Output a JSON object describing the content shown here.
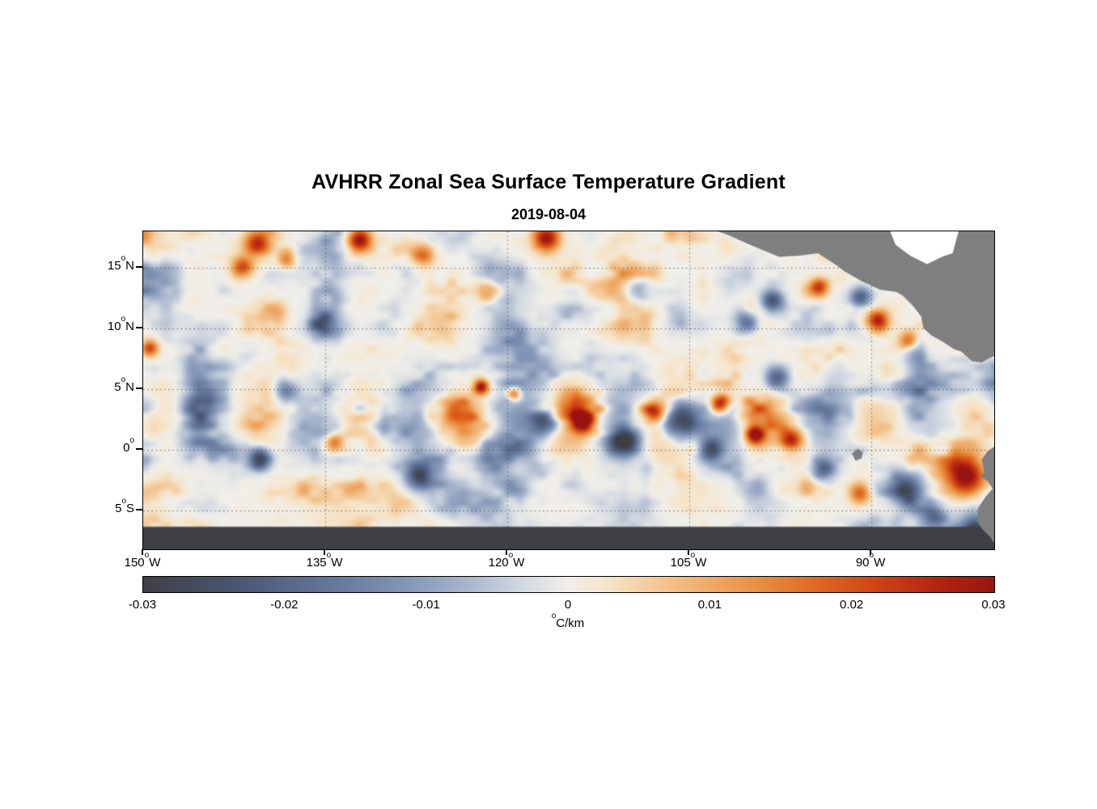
{
  "header": {
    "title": "AVHRR Zonal Sea Surface Temperature Gradient",
    "date": "2019-08-04"
  },
  "chart_data": {
    "type": "heatmap",
    "title": "AVHRR Zonal Sea Surface Temperature Gradient",
    "date": "2019-08-04",
    "deg": "o",
    "value_units": "degC/km",
    "x_range": [
      -150,
      -79.87
    ],
    "y_range": [
      18,
      -8.2
    ],
    "x_axis": {
      "ticks": [
        {
          "lon": -150,
          "num": "150",
          "hem": "W"
        },
        {
          "lon": -135,
          "num": "135",
          "hem": "W"
        },
        {
          "lon": -120,
          "num": "120",
          "hem": "W"
        },
        {
          "lon": -105,
          "num": "105",
          "hem": "W"
        },
        {
          "lon": -90,
          "num": "90",
          "hem": "W"
        }
      ]
    },
    "y_axis": {
      "ticks": [
        {
          "lat": 15,
          "num": "15",
          "hem": "N"
        },
        {
          "lat": 10,
          "num": "10",
          "hem": "N"
        },
        {
          "lat": 5,
          "num": "5",
          "hem": "N"
        },
        {
          "lat": 0,
          "num": "0",
          "hem": ""
        },
        {
          "lat": -5,
          "num": "5",
          "hem": "S"
        }
      ]
    },
    "grid": {
      "lon_lines": [
        -135,
        -120,
        -105,
        -90
      ],
      "lat_lines": [
        15,
        10,
        5,
        0,
        -5
      ],
      "style": "dotted"
    },
    "colorbar": {
      "min": -0.03,
      "max": 0.03,
      "ticks": [
        {
          "v": -0.03,
          "label": "-0.03"
        },
        {
          "v": -0.02,
          "label": "-0.02"
        },
        {
          "v": -0.01,
          "label": "-0.01"
        },
        {
          "v": 0,
          "label": "0"
        },
        {
          "v": 0.01,
          "label": "0.01"
        },
        {
          "v": 0.02,
          "label": "0.02"
        },
        {
          "v": 0.03,
          "label": "0.03"
        }
      ],
      "unit_sup": "o",
      "unit_text": "C/km"
    },
    "colormap": [
      [
        0.0,
        "#3e3f45"
      ],
      [
        0.1,
        "#48546f"
      ],
      [
        0.2,
        "#5e7094"
      ],
      [
        0.3,
        "#7e92b4"
      ],
      [
        0.38,
        "#a7b5cc"
      ],
      [
        0.45,
        "#d5dbe3"
      ],
      [
        0.5,
        "#f1efe9"
      ],
      [
        0.55,
        "#f6e3c6"
      ],
      [
        0.62,
        "#f2c08a"
      ],
      [
        0.7,
        "#ec9a4e"
      ],
      [
        0.78,
        "#e06f24"
      ],
      [
        0.86,
        "#cf4415"
      ],
      [
        0.93,
        "#b52513"
      ],
      [
        1.0,
        "#991410"
      ]
    ],
    "land_color": "#7f7f7f",
    "procedural_field": {
      "seed": 20190804,
      "octaves": [
        [
          64,
          0.55
        ],
        [
          28,
          0.3
        ],
        [
          12,
          0.15
        ]
      ],
      "anisotropy": [
        0.85,
        1.15
      ],
      "sharpen_exp": 1.55,
      "base_amp": 0.0285,
      "floor": 0.5,
      "lat_band": {
        "center": 2.5,
        "sigma2": 30,
        "gain": 0.62
      },
      "north_band": {
        "center": 14,
        "sigma2": 26,
        "gain": 0.28
      },
      "east_boost": {
        "center": -86,
        "sigma2": 80,
        "gain": 0.22
      },
      "tiw_wave": {
        "amp": 0.011,
        "wavelength": 8.5,
        "phase_lon": -115,
        "lat_center": 2.3,
        "lat_sigma2": 9,
        "lon_center": -114,
        "lon_sigma2": 900
      }
    },
    "features": [
      [
        -149.5,
        8.4,
        0.022,
        0.7
      ],
      [
        -140.6,
        17.0,
        0.026,
        1.1
      ],
      [
        -138.2,
        15.8,
        0.018,
        0.8
      ],
      [
        -132.2,
        17.3,
        0.03,
        1.0
      ],
      [
        -126.9,
        16.1,
        0.016,
        0.9
      ],
      [
        -116.8,
        17.4,
        0.028,
        1.1
      ],
      [
        -121.6,
        13.1,
        0.014,
        0.9
      ],
      [
        -141.9,
        15.1,
        0.02,
        0.9
      ],
      [
        -135.4,
        10.4,
        -0.016,
        1.0
      ],
      [
        -100.3,
        10.6,
        -0.02,
        1.0
      ],
      [
        -98.2,
        12.3,
        -0.024,
        0.9
      ],
      [
        -94.3,
        13.4,
        0.02,
        0.8
      ],
      [
        -89.5,
        10.6,
        0.028,
        0.9
      ],
      [
        -90.9,
        12.5,
        -0.022,
        0.9
      ],
      [
        -87.0,
        9.0,
        0.016,
        0.8
      ],
      [
        -138.3,
        4.8,
        -0.018,
        1.0
      ],
      [
        -140.4,
        -0.8,
        -0.028,
        0.9
      ],
      [
        -134.3,
        0.6,
        0.016,
        0.8
      ],
      [
        -127.2,
        -2.2,
        -0.022,
        1.1
      ],
      [
        -122.2,
        5.2,
        0.028,
        0.6
      ],
      [
        -119.5,
        4.6,
        0.024,
        0.6
      ],
      [
        -116.9,
        2.4,
        -0.026,
        1.3
      ],
      [
        -113.8,
        2.3,
        0.03,
        0.9
      ],
      [
        -110.4,
        0.8,
        -0.028,
        1.2
      ],
      [
        -107.9,
        3.1,
        0.018,
        0.8
      ],
      [
        -105.8,
        2.2,
        -0.03,
        1.4
      ],
      [
        -102.5,
        3.8,
        0.032,
        0.8
      ],
      [
        -103.3,
        0.0,
        -0.024,
        1.0
      ],
      [
        -99.6,
        1.2,
        0.03,
        0.8
      ],
      [
        -96.6,
        0.8,
        0.024,
        0.9
      ],
      [
        -94.0,
        -1.6,
        -0.02,
        1.0
      ],
      [
        -91.0,
        -3.6,
        0.018,
        0.9
      ],
      [
        -87.2,
        -3.2,
        -0.024,
        1.3
      ],
      [
        -84.9,
        -5.6,
        -0.018,
        1.0
      ],
      [
        -82.3,
        -2.2,
        0.032,
        1.6
      ],
      [
        -81.5,
        -6.8,
        -0.03,
        1.3
      ],
      [
        -97.8,
        5.9,
        -0.022,
        1.0
      ],
      [
        -109.5,
        13.2,
        -0.014,
        1.0
      ]
    ],
    "land": {
      "central_america": [
        [
          -103.5,
          18.3
        ],
        [
          -101.8,
          17.7
        ],
        [
          -100.0,
          16.9
        ],
        [
          -97.6,
          15.9
        ],
        [
          -95.9,
          16.0
        ],
        [
          -94.4,
          16.2
        ],
        [
          -93.0,
          15.3
        ],
        [
          -92.2,
          14.7
        ],
        [
          -90.8,
          13.9
        ],
        [
          -89.3,
          13.2
        ],
        [
          -87.9,
          13.0
        ],
        [
          -87.4,
          12.7
        ],
        [
          -86.6,
          11.9
        ],
        [
          -85.9,
          11.0
        ],
        [
          -85.7,
          10.0
        ],
        [
          -85.0,
          9.4
        ],
        [
          -84.1,
          8.9
        ],
        [
          -83.2,
          8.3
        ],
        [
          -82.6,
          8.1
        ],
        [
          -81.7,
          7.3
        ],
        [
          -80.9,
          7.2
        ],
        [
          -80.2,
          7.6
        ],
        [
          -79.6,
          7.8
        ],
        [
          -79.6,
          18.3
        ]
      ],
      "caribbean_mask": [
        [
          -88.6,
          18.4
        ],
        [
          -88.0,
          16.9
        ],
        [
          -86.8,
          16.0
        ],
        [
          -85.4,
          15.3
        ],
        [
          -84.2,
          15.9
        ],
        [
          -83.3,
          16.2
        ],
        [
          -82.7,
          18.4
        ]
      ],
      "south_america": [
        [
          -79.8,
          0.3
        ],
        [
          -80.4,
          -0.1
        ],
        [
          -80.9,
          -0.8
        ],
        [
          -80.7,
          -1.8
        ],
        [
          -81.0,
          -2.2
        ],
        [
          -80.4,
          -2.6
        ],
        [
          -80.0,
          -3.2
        ],
        [
          -80.6,
          -3.9
        ],
        [
          -81.2,
          -4.8
        ],
        [
          -81.3,
          -5.8
        ],
        [
          -80.9,
          -6.5
        ],
        [
          -80.2,
          -7.2
        ],
        [
          -79.8,
          -7.8
        ],
        [
          -79.0,
          -8.4
        ],
        [
          -79.0,
          0.3
        ]
      ],
      "galapagos": [
        [
          -91.6,
          -0.3
        ],
        [
          -91.1,
          0.1
        ],
        [
          -90.7,
          -0.2
        ],
        [
          -90.8,
          -0.7
        ],
        [
          -91.3,
          -0.9
        ]
      ]
    }
  }
}
